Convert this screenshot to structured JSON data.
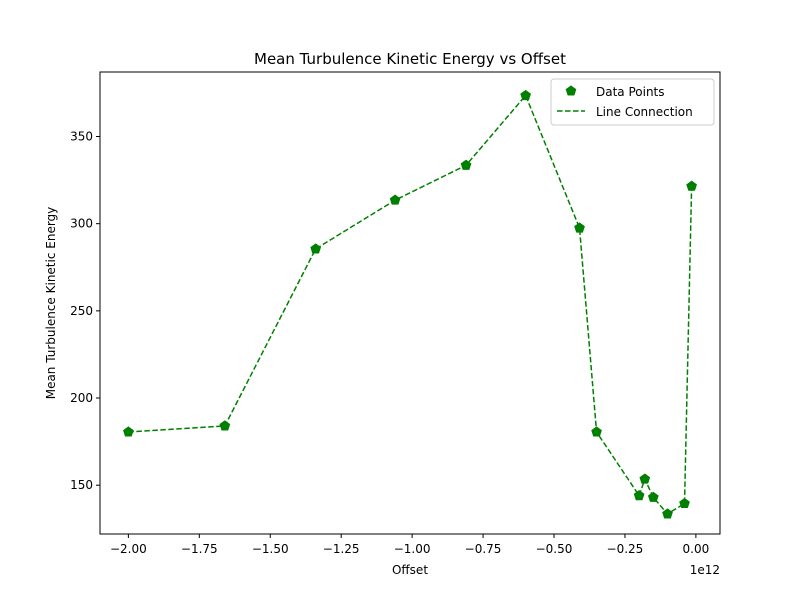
{
  "chart_data": {
    "type": "line",
    "title": "Mean Turbulence Kinetic Energy vs Offset",
    "xlabel": "Offset",
    "ylabel": "Mean Turbulence Kinetic Energy",
    "x_offset_text": "1e12",
    "xlim": [
      -2.1,
      0.085
    ],
    "ylim": [
      122,
      387
    ],
    "x_ticks": [
      -2.0,
      -1.75,
      -1.5,
      -1.25,
      -1.0,
      -0.75,
      -0.5,
      -0.25,
      0.0
    ],
    "x_tick_labels": [
      "−2.00",
      "−1.75",
      "−1.50",
      "−1.25",
      "−1.00",
      "−0.75",
      "−0.50",
      "−0.25",
      "0.00"
    ],
    "y_ticks": [
      150,
      200,
      250,
      300,
      350
    ],
    "y_tick_labels": [
      "150",
      "200",
      "250",
      "300",
      "350"
    ],
    "grid": false,
    "legend_position": "top-right",
    "color": "#008000",
    "series": [
      {
        "name": "Data Points",
        "style": "markers",
        "x": [
          -2.0,
          -1.66,
          -1.34,
          -1.06,
          -0.81,
          -0.6,
          -0.41,
          -0.35,
          -0.2,
          -0.18,
          -0.15,
          -0.1,
          -0.04,
          -0.015
        ],
        "y": [
          180.5,
          184,
          285.5,
          313.5,
          333.5,
          373.5,
          297.5,
          180.5,
          144,
          153.5,
          143,
          133.5,
          139.5,
          321.5
        ]
      },
      {
        "name": "Line Connection",
        "style": "dashed-line",
        "x": [
          -2.0,
          -1.66,
          -1.34,
          -1.06,
          -0.81,
          -0.6,
          -0.41,
          -0.35,
          -0.2,
          -0.18,
          -0.15,
          -0.1,
          -0.04,
          -0.015
        ],
        "y": [
          180.5,
          184,
          285.5,
          313.5,
          333.5,
          373.5,
          297.5,
          180.5,
          144,
          153.5,
          143,
          133.5,
          139.5,
          321.5
        ]
      }
    ]
  }
}
